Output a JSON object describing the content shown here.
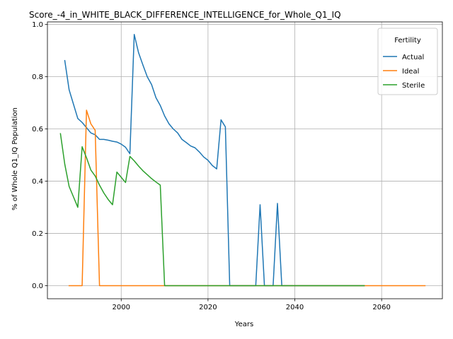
{
  "chart_data": {
    "type": "line",
    "title": "Score_-4_in_WHITE_BLACK_DIFFERENCE_INTELLIGENCE_for_Whole_Q1_IQ",
    "xlabel": "Years",
    "ylabel": "% of Whole Q1_IQ Population",
    "xlim": [
      1983,
      2074
    ],
    "ylim": [
      -0.05,
      1.01
    ],
    "xticks": [
      2000,
      2020,
      2040,
      2060
    ],
    "yticks": [
      0.0,
      0.2,
      0.4,
      0.6,
      0.8,
      1.0
    ],
    "xtick_labels": [
      "2000",
      "2020",
      "2040",
      "2060"
    ],
    "ytick_labels": [
      "0.0",
      "0.2",
      "0.4",
      "0.6",
      "0.8",
      "1.0"
    ],
    "grid": true,
    "legend": {
      "title": "Fertility",
      "placement": "top-right"
    },
    "series": [
      {
        "name": "Actual",
        "color": "#1f77b4",
        "points": [
          [
            1987,
            0.862
          ],
          [
            1988,
            0.75
          ],
          [
            1989,
            0.695
          ],
          [
            1990,
            0.64
          ],
          [
            1991,
            0.625
          ],
          [
            1992,
            0.605
          ],
          [
            1993,
            0.585
          ],
          [
            1994,
            0.578
          ],
          [
            1995,
            0.56
          ],
          [
            1996,
            0.56
          ],
          [
            1997,
            0.557
          ],
          [
            1998,
            0.553
          ],
          [
            1999,
            0.55
          ],
          [
            2000,
            0.542
          ],
          [
            2001,
            0.53
          ],
          [
            2002,
            0.505
          ],
          [
            2003,
            0.962
          ],
          [
            2004,
            0.892
          ],
          [
            2005,
            0.845
          ],
          [
            2006,
            0.8
          ],
          [
            2007,
            0.77
          ],
          [
            2008,
            0.72
          ],
          [
            2009,
            0.69
          ],
          [
            2010,
            0.65
          ],
          [
            2011,
            0.62
          ],
          [
            2012,
            0.6
          ],
          [
            2013,
            0.585
          ],
          [
            2014,
            0.56
          ],
          [
            2015,
            0.548
          ],
          [
            2016,
            0.535
          ],
          [
            2017,
            0.528
          ],
          [
            2018,
            0.512
          ],
          [
            2019,
            0.493
          ],
          [
            2020,
            0.48
          ],
          [
            2021,
            0.46
          ],
          [
            2022,
            0.447
          ],
          [
            2023,
            0.635
          ],
          [
            2024,
            0.608
          ],
          [
            2025,
            0.0
          ],
          [
            2031,
            0.0
          ],
          [
            2032,
            0.31
          ],
          [
            2033,
            0.0
          ],
          [
            2035,
            0.0
          ],
          [
            2036,
            0.315
          ],
          [
            2037,
            0.0
          ],
          [
            2056,
            0.0
          ]
        ]
      },
      {
        "name": "Ideal",
        "color": "#ff7f0e",
        "points": [
          [
            1988,
            0.0
          ],
          [
            1991,
            0.0
          ],
          [
            1992,
            0.672
          ],
          [
            1993,
            0.62
          ],
          [
            1994,
            0.595
          ],
          [
            1995,
            0.0
          ],
          [
            2070,
            0.0
          ]
        ]
      },
      {
        "name": "Sterile",
        "color": "#2ca02c",
        "points": [
          [
            1986,
            0.582
          ],
          [
            1987,
            0.465
          ],
          [
            1988,
            0.38
          ],
          [
            1989,
            0.34
          ],
          [
            1990,
            0.3
          ],
          [
            1991,
            0.532
          ],
          [
            1992,
            0.49
          ],
          [
            1993,
            0.443
          ],
          [
            1994,
            0.42
          ],
          [
            1995,
            0.385
          ],
          [
            1996,
            0.355
          ],
          [
            1997,
            0.33
          ],
          [
            1998,
            0.31
          ],
          [
            1999,
            0.435
          ],
          [
            2000,
            0.415
          ],
          [
            2001,
            0.395
          ],
          [
            2002,
            0.495
          ],
          [
            2003,
            0.478
          ],
          [
            2004,
            0.458
          ],
          [
            2005,
            0.44
          ],
          [
            2006,
            0.425
          ],
          [
            2007,
            0.41
          ],
          [
            2008,
            0.397
          ],
          [
            2009,
            0.385
          ],
          [
            2010,
            0.0
          ],
          [
            2056,
            0.0
          ]
        ]
      }
    ]
  }
}
